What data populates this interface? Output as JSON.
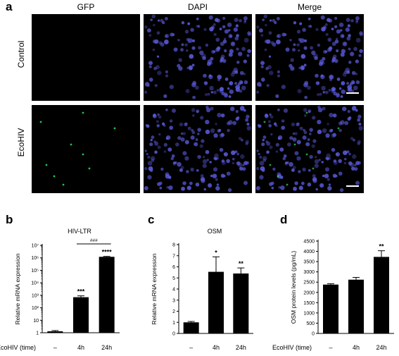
{
  "panels": {
    "a": {
      "letter": "a",
      "columns": [
        "GFP",
        "DAPI",
        "Merge"
      ],
      "rows": [
        "Control",
        "EcoHIV"
      ],
      "colors": {
        "background": "#000000",
        "nuclei": "#5a5adc",
        "gfp": "#2ee06a",
        "scale_bar": "#ffffff"
      }
    },
    "b": {
      "letter": "b"
    },
    "c": {
      "letter": "c"
    },
    "d": {
      "letter": "d"
    }
  },
  "chart_data": [
    {
      "id": "b",
      "type": "bar",
      "title": "HIV-LTR",
      "ylabel": "Relative mRNA expression",
      "yscale": "log",
      "ylim": [
        1,
        10000000
      ],
      "yticks": [
        1,
        10,
        100,
        1000,
        10000,
        100000,
        1000000,
        10000000
      ],
      "ytick_labels": [
        "1",
        "10",
        "10²",
        "10³",
        "10⁴",
        "10⁵",
        "10⁶",
        "10⁷"
      ],
      "xlabel": "EcoHIV (time)",
      "categories": [
        "–",
        "4h",
        "24h"
      ],
      "values": [
        1.3,
        700,
        1200000
      ],
      "errors": [
        0.2,
        200,
        100000
      ],
      "significance": [
        "",
        "***",
        "****"
      ],
      "bracket": {
        "from": "4h",
        "to": "24h",
        "label": "###"
      },
      "grid": false
    },
    {
      "id": "c",
      "type": "bar",
      "title": "OSM",
      "ylabel": "Relative mRNA expression",
      "ylim": [
        0,
        8
      ],
      "yticks": [
        0,
        1,
        2,
        3,
        4,
        5,
        6,
        7,
        8
      ],
      "ytick_labels": [
        "0",
        "1",
        "2",
        "3",
        "4",
        "5",
        "6",
        "7",
        "8"
      ],
      "xlabel": "",
      "categories": [
        "–",
        "4h",
        "24h"
      ],
      "values": [
        1.0,
        5.55,
        5.4
      ],
      "errors": [
        0.08,
        1.35,
        0.5
      ],
      "significance": [
        "",
        "*",
        "**"
      ],
      "grid": false
    },
    {
      "id": "d",
      "type": "bar",
      "title": "",
      "ylabel": "OSM protein levels (pg/mL)",
      "ylim": [
        0,
        4500
      ],
      "yticks": [
        0,
        500,
        1000,
        1500,
        2000,
        2500,
        3000,
        3500,
        4000,
        4500
      ],
      "ytick_labels": [
        "0",
        "500",
        "1000",
        "1500",
        "2000",
        "2500",
        "3000",
        "3500",
        "4000",
        "4500"
      ],
      "xlabel": "EcoHIV (time)",
      "categories": [
        "–",
        "4h",
        "24h"
      ],
      "values": [
        2380,
        2620,
        3730
      ],
      "errors": [
        40,
        110,
        300
      ],
      "significance": [
        "",
        "",
        "**"
      ],
      "grid": false
    }
  ]
}
